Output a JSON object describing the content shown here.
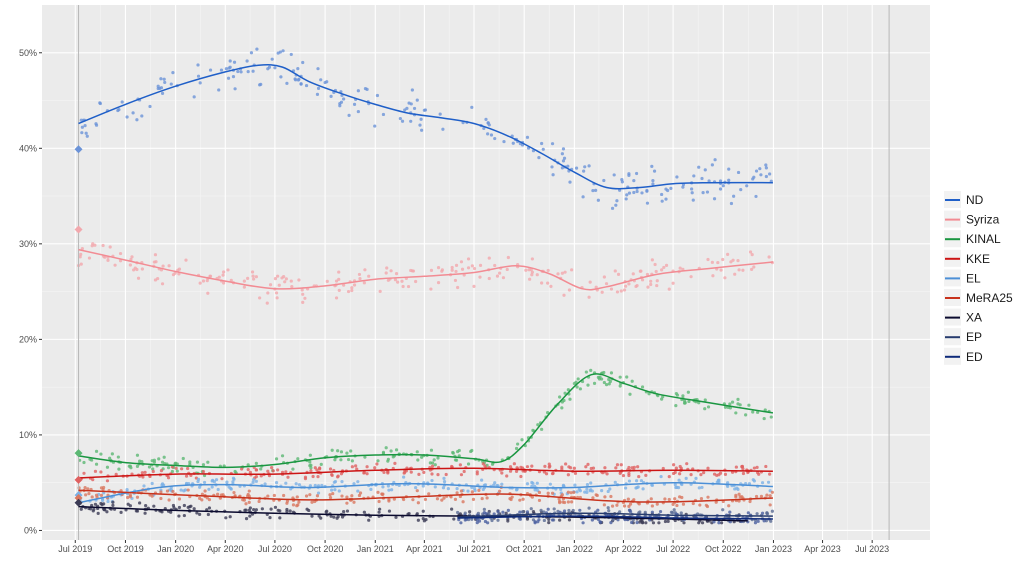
{
  "chart_data": {
    "type": "scatter",
    "x_ticks": [
      "Jul 2019",
      "Oct 2019",
      "Jan 2020",
      "Apr 2020",
      "Jul 2020",
      "Oct 2020",
      "Jan 2021",
      "Apr 2021",
      "Jul 2021",
      "Oct 2021",
      "Jan 2022",
      "Apr 2022",
      "Jul 2022",
      "Oct 2022",
      "Jan 2023",
      "Apr 2023",
      "Jul 2023"
    ],
    "y_ticks": [
      "0%",
      "10%",
      "20%",
      "30%",
      "40%",
      "50%"
    ],
    "xlim": [
      "2019-05-01",
      "2023-10-15"
    ],
    "ylim": [
      -1.0,
      55.0
    ],
    "election_date": "2019-07-07",
    "election_date_2": "2023-08-01",
    "grid": true,
    "legend_position": "right",
    "series": [
      {
        "name": "ND",
        "color": "#1f5fc8",
        "point_color": "#6b93d8",
        "election_result": 39.9,
        "trend": [
          [
            "2019-07-07",
            42.6
          ],
          [
            "2019-10-01",
            44.6
          ],
          [
            "2020-01-01",
            46.5
          ],
          [
            "2020-04-01",
            48.0
          ],
          [
            "2020-06-01",
            48.7
          ],
          [
            "2020-07-15",
            48.5
          ],
          [
            "2020-09-01",
            47.0
          ],
          [
            "2020-11-01",
            45.7
          ],
          [
            "2021-01-01",
            44.6
          ],
          [
            "2021-03-01",
            43.7
          ],
          [
            "2021-05-01",
            43.2
          ],
          [
            "2021-07-01",
            42.6
          ],
          [
            "2021-09-01",
            41.3
          ],
          [
            "2021-11-01",
            39.5
          ],
          [
            "2022-01-01",
            37.5
          ],
          [
            "2022-03-01",
            35.9
          ],
          [
            "2022-05-01",
            35.9
          ],
          [
            "2022-07-01",
            36.3
          ],
          [
            "2022-09-01",
            36.4
          ],
          [
            "2022-12-31",
            36.4
          ]
        ]
      },
      {
        "name": "Syriza",
        "color": "#f28b93",
        "point_color": "#f2a8ad",
        "election_result": 31.5,
        "trend": [
          [
            "2019-07-07",
            29.4
          ],
          [
            "2019-10-01",
            28.3
          ],
          [
            "2020-01-01",
            27.1
          ],
          [
            "2020-04-01",
            26.1
          ],
          [
            "2020-07-01",
            25.3
          ],
          [
            "2020-10-01",
            25.6
          ],
          [
            "2021-01-01",
            26.3
          ],
          [
            "2021-04-01",
            26.6
          ],
          [
            "2021-07-01",
            27.0
          ],
          [
            "2021-09-15",
            27.7
          ],
          [
            "2021-11-15",
            26.9
          ],
          [
            "2022-01-15",
            25.3
          ],
          [
            "2022-03-01",
            25.5
          ],
          [
            "2022-06-01",
            26.8
          ],
          [
            "2022-09-01",
            27.4
          ],
          [
            "2022-12-31",
            28.1
          ]
        ]
      },
      {
        "name": "KINAL",
        "color": "#1a9641",
        "point_color": "#5cb874",
        "election_result": 8.1,
        "trend": [
          [
            "2019-07-07",
            7.8
          ],
          [
            "2019-10-01",
            7.1
          ],
          [
            "2020-01-01",
            6.8
          ],
          [
            "2020-04-01",
            6.6
          ],
          [
            "2020-07-01",
            6.9
          ],
          [
            "2020-10-01",
            7.6
          ],
          [
            "2021-01-01",
            7.9
          ],
          [
            "2021-04-01",
            7.9
          ],
          [
            "2021-07-01",
            7.5
          ],
          [
            "2021-08-20",
            7.2
          ],
          [
            "2021-10-01",
            9.0
          ],
          [
            "2021-12-01",
            13.2
          ],
          [
            "2022-02-01",
            16.3
          ],
          [
            "2022-04-01",
            15.4
          ],
          [
            "2022-06-01",
            14.3
          ],
          [
            "2022-09-01",
            13.4
          ],
          [
            "2022-12-31",
            12.3
          ]
        ]
      },
      {
        "name": "KKE",
        "color": "#cc1414",
        "point_color": "#e06060",
        "election_result": 5.3,
        "trend": [
          [
            "2019-07-07",
            5.5
          ],
          [
            "2020-01-01",
            5.9
          ],
          [
            "2020-07-01",
            5.9
          ],
          [
            "2021-01-01",
            6.3
          ],
          [
            "2021-07-01",
            6.5
          ],
          [
            "2022-01-01",
            6.2
          ],
          [
            "2022-07-01",
            6.3
          ],
          [
            "2022-12-31",
            6.2
          ]
        ]
      },
      {
        "name": "EL",
        "color": "#4b8fd6",
        "point_color": "#7ab0e6",
        "election_result": 3.7,
        "trend": [
          [
            "2019-07-07",
            2.9
          ],
          [
            "2019-12-01",
            4.5
          ],
          [
            "2020-04-01",
            4.8
          ],
          [
            "2020-09-01",
            4.5
          ],
          [
            "2021-03-01",
            4.9
          ],
          [
            "2021-09-01",
            4.5
          ],
          [
            "2022-01-01",
            4.5
          ],
          [
            "2022-07-01",
            5.0
          ],
          [
            "2022-12-31",
            4.6
          ]
        ]
      },
      {
        "name": "MeRA25",
        "color": "#c8331d",
        "point_color": "#d9775f",
        "election_result": 3.4,
        "trend": [
          [
            "2019-07-07",
            4.2
          ],
          [
            "2020-03-01",
            3.6
          ],
          [
            "2020-09-01",
            3.2
          ],
          [
            "2021-03-01",
            3.5
          ],
          [
            "2021-09-01",
            3.8
          ],
          [
            "2022-03-01",
            3.1
          ],
          [
            "2022-07-01",
            3.0
          ],
          [
            "2022-12-31",
            3.4
          ]
        ]
      },
      {
        "name": "XA",
        "color": "#0a0a2e",
        "point_color": "#3b3b55",
        "election_result": 2.9,
        "trend": [
          [
            "2019-07-07",
            2.5
          ],
          [
            "2020-01-01",
            2.1
          ],
          [
            "2020-07-01",
            1.8
          ],
          [
            "2021-01-01",
            1.6
          ],
          [
            "2021-07-01",
            1.5
          ],
          [
            "2022-01-01",
            1.4
          ],
          [
            "2022-07-01",
            1.2
          ],
          [
            "2022-11-15",
            1.0
          ]
        ]
      },
      {
        "name": "EP",
        "color": "#273c6e",
        "point_color": "#5a6b95",
        "election_result": null,
        "trend": [
          [
            "2021-06-01",
            1.4
          ],
          [
            "2022-01-01",
            1.8
          ],
          [
            "2022-07-01",
            1.6
          ],
          [
            "2022-12-31",
            1.5
          ]
        ]
      },
      {
        "name": "ED",
        "color": "#0e2a7a",
        "point_color": "#4a5fa0",
        "election_result": null,
        "trend": [
          [
            "2021-06-01",
            1.3
          ],
          [
            "2022-01-01",
            1.5
          ],
          [
            "2022-07-01",
            1.3
          ],
          [
            "2022-12-31",
            1.2
          ]
        ]
      }
    ]
  }
}
